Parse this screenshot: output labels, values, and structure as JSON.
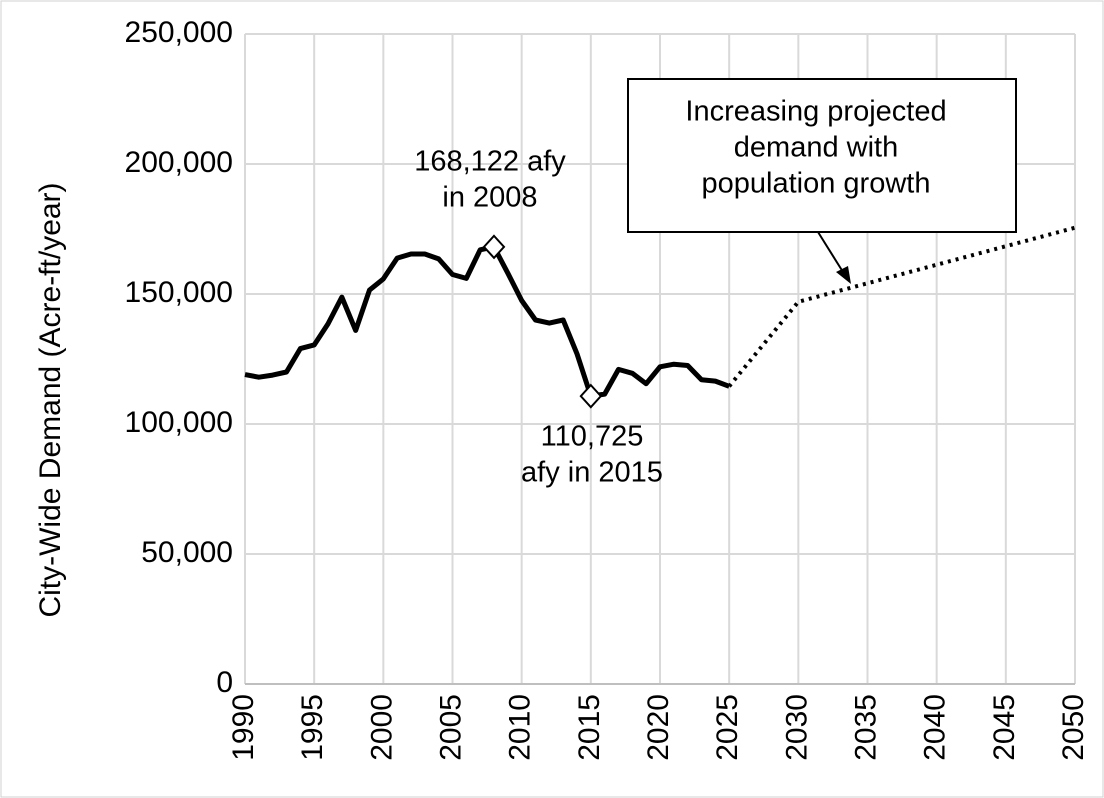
{
  "chart_data": {
    "type": "line",
    "y_label": "City-Wide Demand (Acre-ft/year)",
    "series": [
      {
        "color": "#000000",
        "style": "solid",
        "x": [
          1990,
          1991,
          1992,
          1993,
          1994,
          1995,
          1996,
          1997,
          1998,
          1999,
          2000,
          2001,
          2002,
          2003,
          2004,
          2005,
          2006,
          2007,
          2008,
          2009,
          2010,
          2011,
          2012,
          2013,
          2014,
          2015,
          2016,
          2017,
          2018,
          2019,
          2020,
          2021,
          2022,
          2023,
          2024,
          2025
        ],
        "values": [
          119000,
          118000,
          118800,
          120000,
          129000,
          130400,
          138500,
          148800,
          136000,
          151500,
          155800,
          163800,
          165400,
          165400,
          163500,
          157500,
          156000,
          167000,
          168122,
          158000,
          147500,
          140000,
          138800,
          140000,
          127000,
          110725,
          111500,
          121000,
          119500,
          115500,
          122000,
          123000,
          122500,
          117000,
          116500,
          114500
        ],
        "marked_x": [
          2008,
          2015
        ]
      },
      {
        "color": "#000000",
        "style": "dotted",
        "x": [
          2025,
          2030,
          2050
        ],
        "values": [
          114500,
          147000,
          175500
        ]
      }
    ],
    "annotations": [
      {
        "lines": [
          "168,122 afy",
          "in 2008"
        ]
      },
      {
        "lines": [
          "110,725",
          "afy in 2015"
        ]
      },
      {
        "lines": [
          "Increasing projected",
          "demand with",
          "population growth"
        ]
      }
    ],
    "xlim": [
      1990,
      2050
    ],
    "xticks": [
      1990,
      1995,
      2000,
      2005,
      2010,
      2015,
      2020,
      2025,
      2030,
      2035,
      2040,
      2045,
      2050
    ],
    "ylim": [
      0,
      250000
    ],
    "yticks": [
      0,
      {
        "value": 50000,
        "label": "50,000"
      },
      {
        "value": 100000,
        "label": "100,000"
      },
      {
        "value": 150000,
        "label": "150,000"
      },
      {
        "value": 200000,
        "label": "200,000"
      },
      {
        "value": 250000,
        "label": "250,000"
      }
    ],
    "grid": true
  }
}
